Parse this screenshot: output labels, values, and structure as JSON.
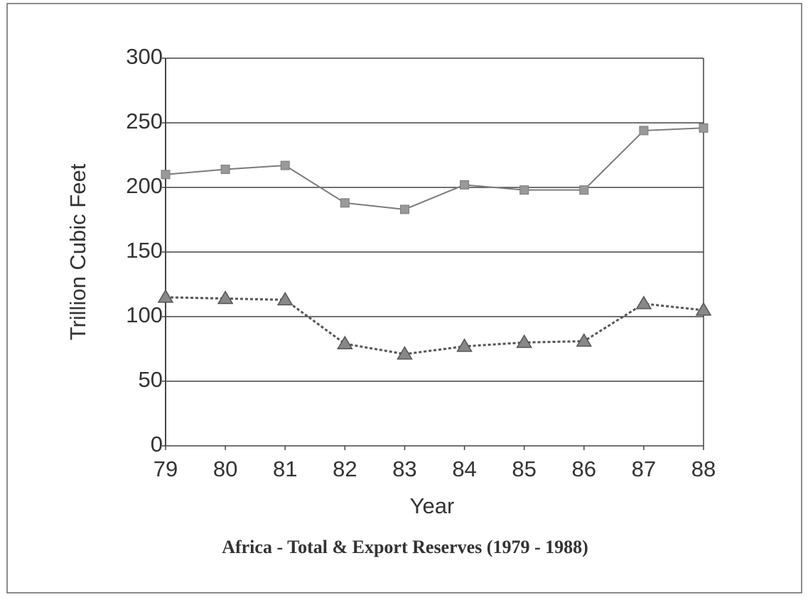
{
  "chart_data": {
    "type": "line",
    "title": "Africa - Total & Export Reserves (1979 - 1988)",
    "x_label": "Year",
    "y_label": "Trillion Cubic Feet",
    "categories": [
      "79",
      "80",
      "81",
      "82",
      "83",
      "84",
      "85",
      "86",
      "87",
      "88"
    ],
    "series": [
      {
        "color": "#7a7a7a",
        "marker": "square",
        "dashed": false,
        "values": [
          210,
          214,
          217,
          188,
          183,
          202,
          198,
          198,
          244,
          246
        ]
      },
      {
        "color": "#555555",
        "marker": "triangle",
        "dashed": true,
        "values": [
          115,
          114,
          113,
          79,
          71,
          77,
          80,
          81,
          110,
          105
        ]
      }
    ],
    "ylim": [
      0,
      300
    ],
    "yticks": [
      0,
      50,
      100,
      150,
      200,
      250,
      300
    ],
    "grid": true
  }
}
